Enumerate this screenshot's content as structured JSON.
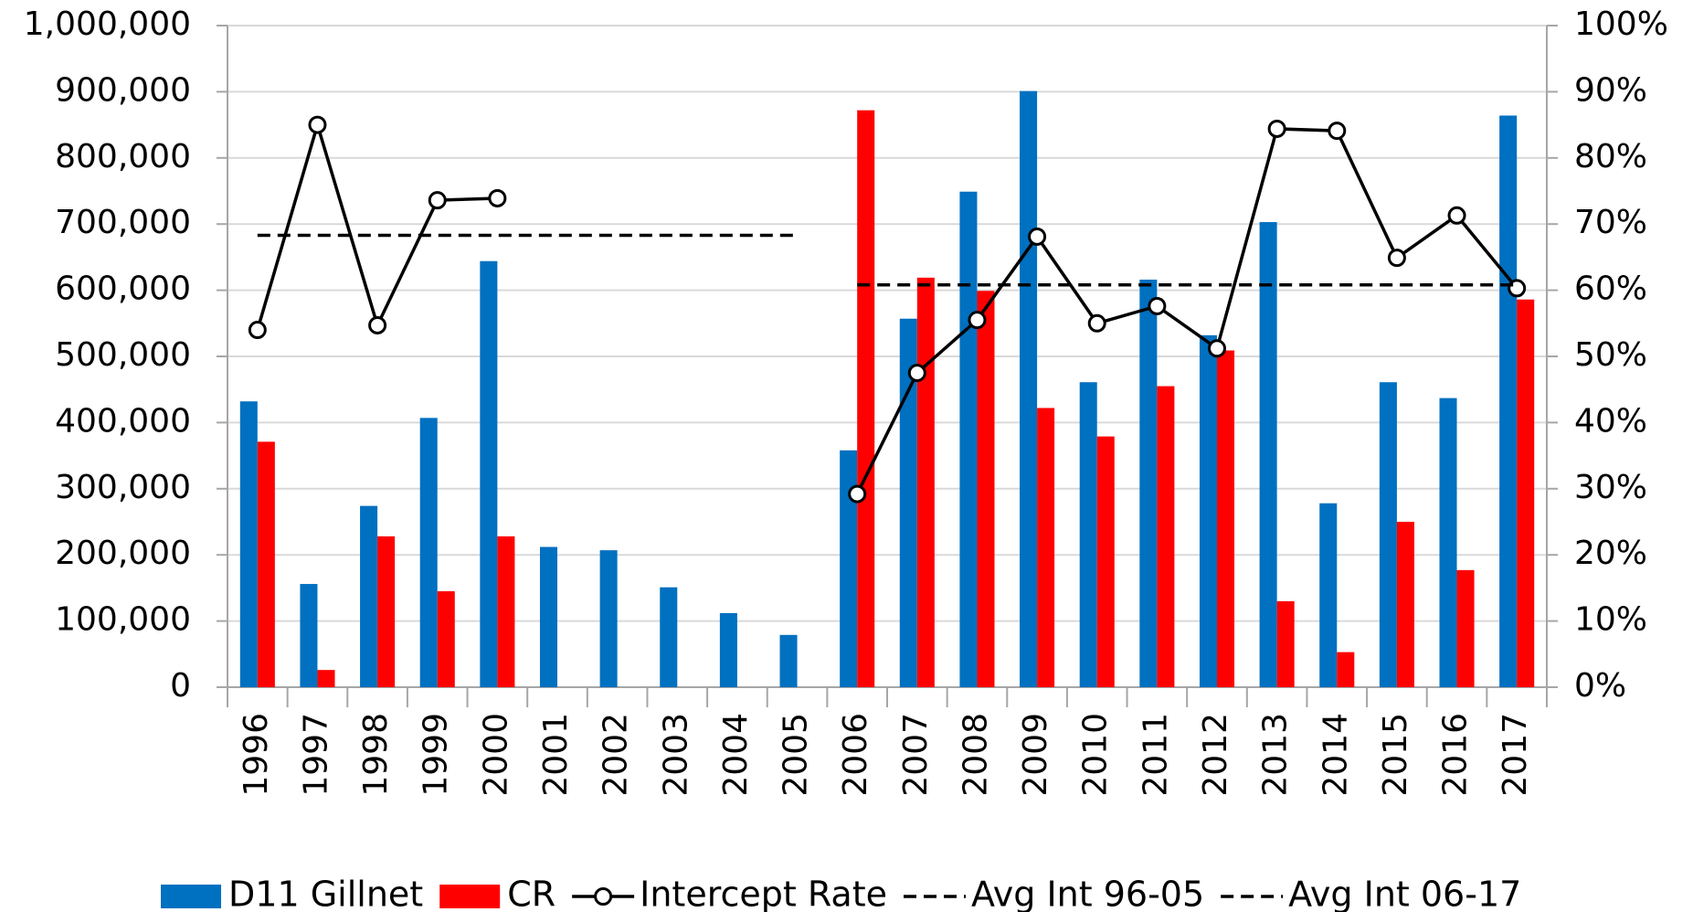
{
  "chart_data": {
    "type": "bar",
    "categories": [
      "1996",
      "1997",
      "1998",
      "1999",
      "2000",
      "2001",
      "2002",
      "2003",
      "2004",
      "2005",
      "2006",
      "2007",
      "2008",
      "2009",
      "2010",
      "2011",
      "2012",
      "2013",
      "2014",
      "2015",
      "2016",
      "2017"
    ],
    "series": [
      {
        "name": "D11 Gillnet",
        "type": "bar",
        "color": "#0070c0",
        "values": [
          432000,
          156000,
          274000,
          407000,
          644000,
          212000,
          207000,
          151000,
          112000,
          79000,
          358000,
          557000,
          749000,
          901000,
          461000,
          616000,
          532000,
          703000,
          278000,
          461000,
          437000,
          864000
        ]
      },
      {
        "name": "CR",
        "type": "bar",
        "color": "#ff0000",
        "values": [
          371000,
          26000,
          228000,
          145000,
          228000,
          null,
          null,
          null,
          null,
          null,
          872000,
          619000,
          599000,
          422000,
          379000,
          455000,
          509000,
          130000,
          53000,
          250000,
          177000,
          586000
        ]
      },
      {
        "name": "Intercept Rate",
        "type": "line",
        "axis": "y2",
        "color": "#000000",
        "marker": "circle",
        "values": [
          54,
          85,
          54.7,
          73.6,
          73.9,
          null,
          null,
          null,
          null,
          null,
          29.2,
          47.5,
          55.5,
          68.1,
          55,
          57.6,
          51.2,
          84.4,
          84.1,
          64.9,
          71.3,
          60.3
        ]
      },
      {
        "name": "Avg Int 96-05",
        "type": "line",
        "axis": "y2",
        "color": "#000000",
        "line_style": "dashed",
        "values": [
          68.3,
          68.3,
          68.3,
          68.3,
          68.3,
          68.3,
          68.3,
          68.3,
          68.3,
          68.3,
          null,
          null,
          null,
          null,
          null,
          null,
          null,
          null,
          null,
          null,
          null,
          null
        ]
      },
      {
        "name": "Avg Int 06-17",
        "type": "line",
        "axis": "y2",
        "color": "#000000",
        "line_style": "dashed",
        "values": [
          null,
          null,
          null,
          null,
          null,
          null,
          null,
          null,
          null,
          null,
          60.8,
          60.8,
          60.8,
          60.8,
          60.8,
          60.8,
          60.8,
          60.8,
          60.8,
          60.8,
          60.8,
          60.8
        ]
      }
    ],
    "ylim": [
      0,
      1000000
    ],
    "yticks": [
      0,
      {
        "value": 100000,
        "label": "100,000"
      },
      {
        "value": 200000,
        "label": "200,000"
      },
      {
        "value": 300000,
        "label": "300,000"
      },
      {
        "value": 400000,
        "label": "400,000"
      },
      {
        "value": 500000,
        "label": "500,000"
      },
      {
        "value": 600000,
        "label": "600,000"
      },
      {
        "value": 700000,
        "label": "700,000"
      },
      {
        "value": 800000,
        "label": "800,000"
      },
      {
        "value": 900000,
        "label": "900,000"
      },
      {
        "value": 1000000,
        "label": "1,000,000"
      }
    ],
    "y2lim": [
      0,
      100
    ],
    "y2ticks": [
      {
        "value": 0,
        "label": "0%"
      },
      {
        "value": 10,
        "label": "10%"
      },
      {
        "value": 20,
        "label": "20%"
      },
      {
        "value": 30,
        "label": "30%"
      },
      {
        "value": 40,
        "label": "40%"
      },
      {
        "value": 50,
        "label": "50%"
      },
      {
        "value": 60,
        "label": "60%"
      },
      {
        "value": 70,
        "label": "70%"
      },
      {
        "value": 80,
        "label": "80%"
      },
      {
        "value": 90,
        "label": "90%"
      },
      {
        "value": 100,
        "label": "100%"
      }
    ],
    "grid": true,
    "legend": "bottom"
  }
}
